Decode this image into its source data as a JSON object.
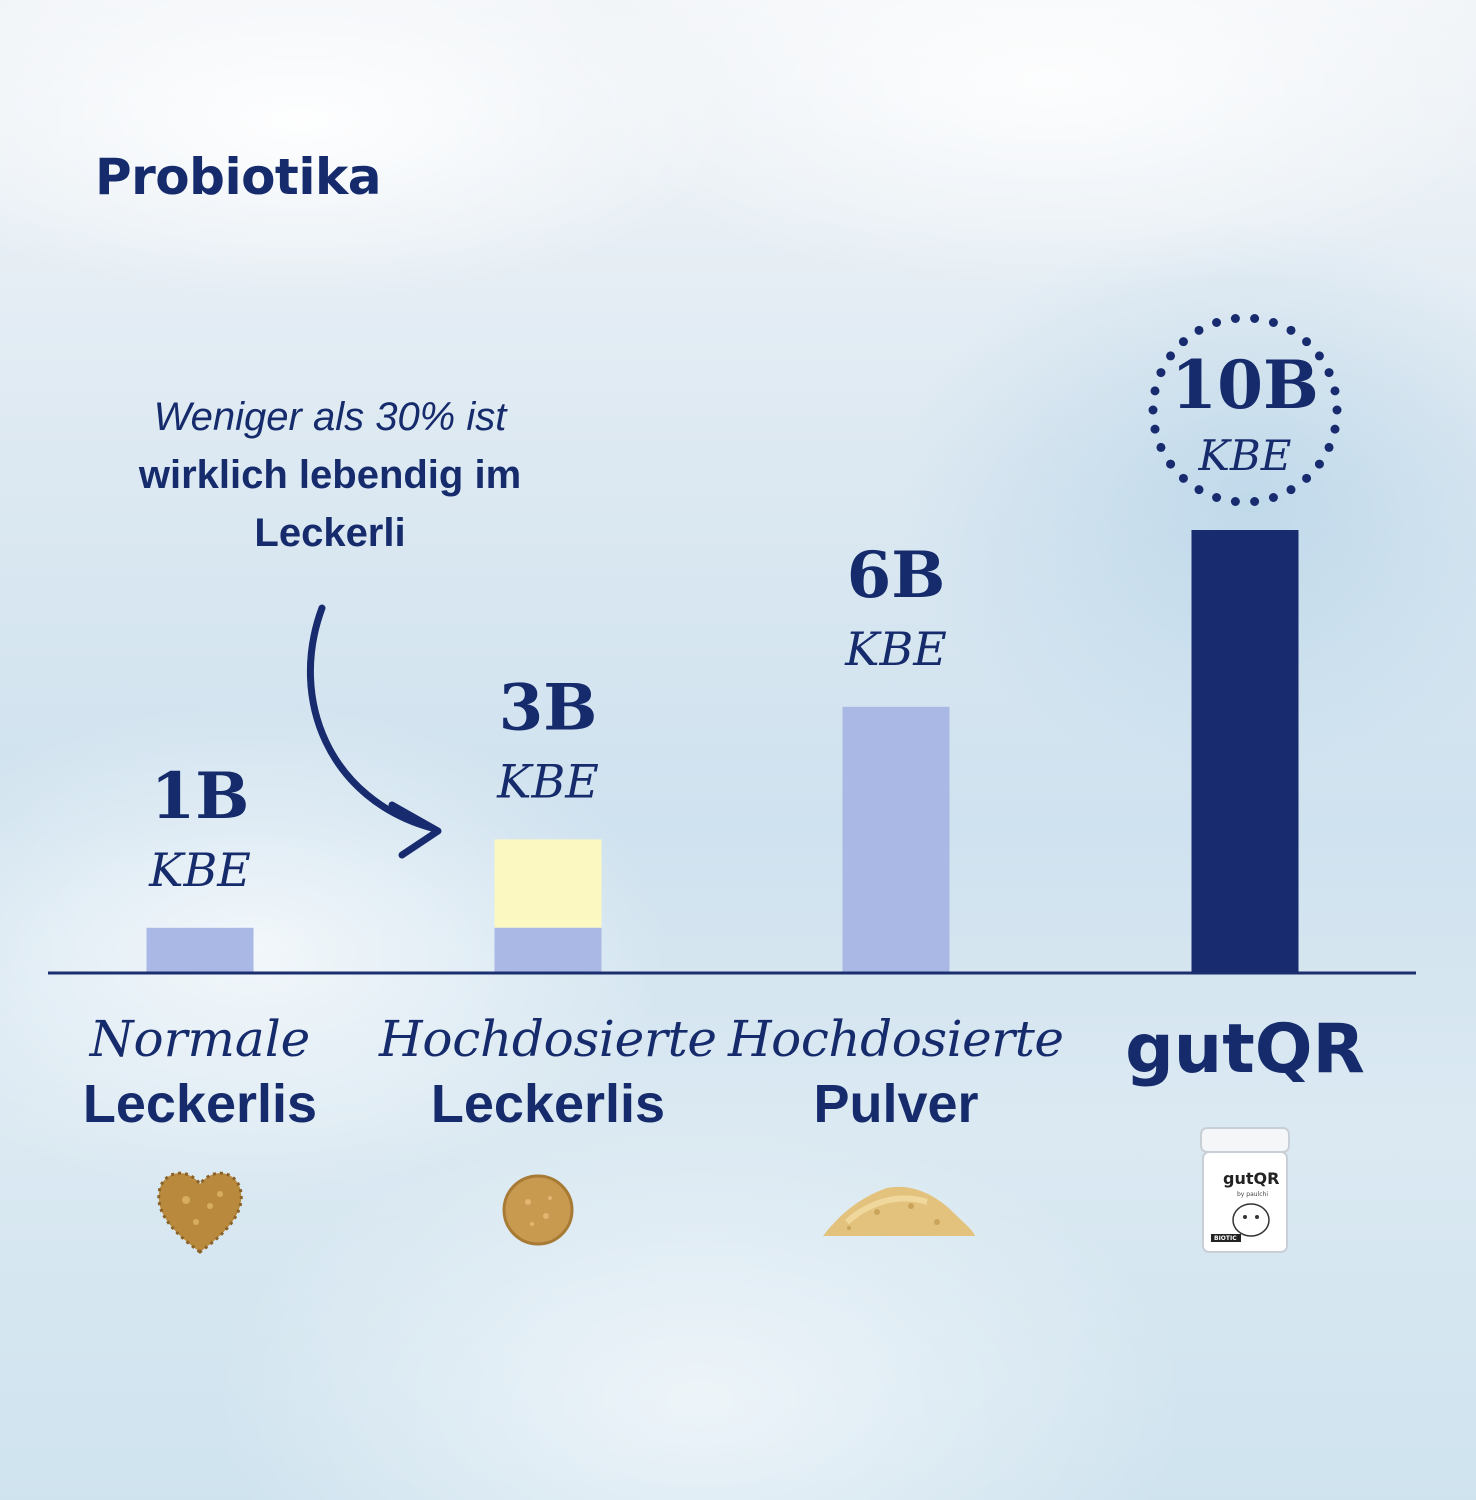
{
  "chart_data": {
    "type": "bar",
    "title": "Probiotika",
    "unit": "KBE",
    "categories": [
      {
        "line1": "Normale",
        "line2": "Leckerlis"
      },
      {
        "line1": "Hochdosierte",
        "line2": "Leckerlis"
      },
      {
        "line1": "Hochdosierte",
        "line2": "Pulver"
      },
      {
        "line1": "",
        "line2": "gutQR"
      }
    ],
    "value_labels": [
      "1B",
      "3B",
      "6B",
      "10B"
    ],
    "values": [
      1,
      3,
      6,
      10
    ],
    "live_portion": [
      1,
      1,
      6,
      10
    ],
    "ylim": [
      0,
      10
    ],
    "annotation": {
      "line1": "Weniger als 30% ist",
      "line2": "wirklich lebendig im",
      "line3": "Leckerli"
    },
    "colors": {
      "bar_light": "#aab8e6",
      "bar_highlight": "#172b6e",
      "dead_portion": "#fbf8c2",
      "text": "#162b6c",
      "axis": "#1b2f6f"
    }
  },
  "product_label": {
    "brand": "gutQR",
    "sub": "by paulchi",
    "badge": "BIOTIC"
  },
  "icons": [
    "heart-treat-icon",
    "round-treat-icon",
    "powder-pile-icon",
    "gutqr-jar-icon"
  ]
}
